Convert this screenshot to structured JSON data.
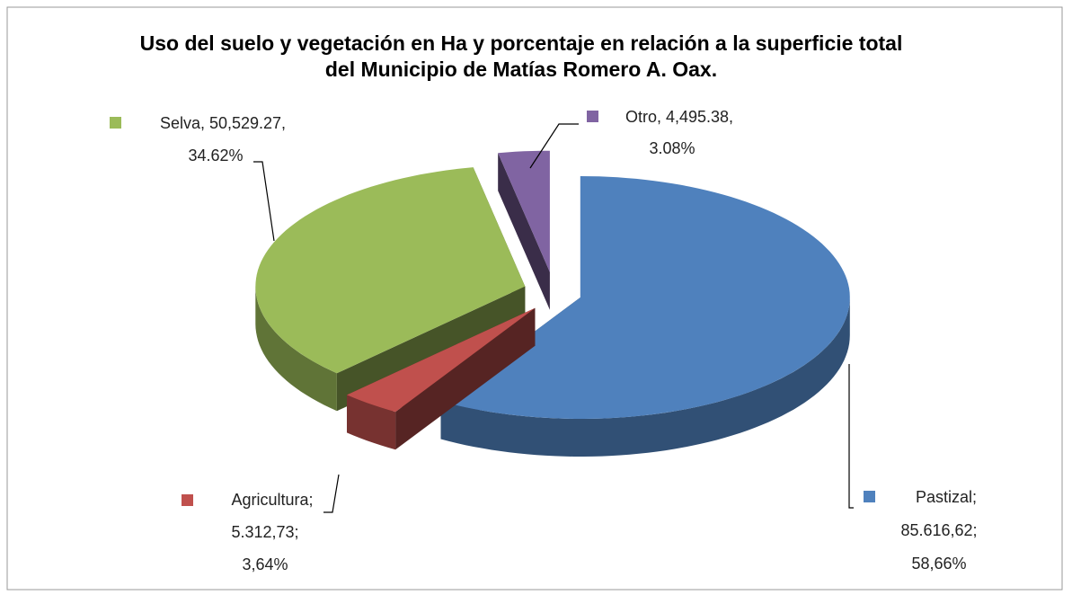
{
  "chart_data": {
    "type": "pie3d",
    "title": "Uso del suelo y vegetación en Ha y porcentaje  en relación a la superficie total del Municipio de Matías Romero A. Oax.",
    "categories": [
      "Pastizal",
      "Agricultura",
      "Selva",
      "Otro"
    ],
    "values": [
      85616.62,
      5312.73,
      50529.27,
      4495.38
    ],
    "percents": [
      58.66,
      3.64,
      34.62,
      3.08
    ],
    "data_labels": [
      [
        "Pastizal;",
        "85.616,62;",
        "58,66%"
      ],
      [
        "Agricultura;",
        "5.312,73;",
        "3,64%"
      ],
      [
        "Selva, 50,529.27,",
        "34.62%"
      ],
      [
        "Otro, 4,495.38,",
        "3.08%"
      ]
    ],
    "colors": [
      "#4f81bd",
      "#c0504d",
      "#9bbb59",
      "#8064a2"
    ]
  }
}
